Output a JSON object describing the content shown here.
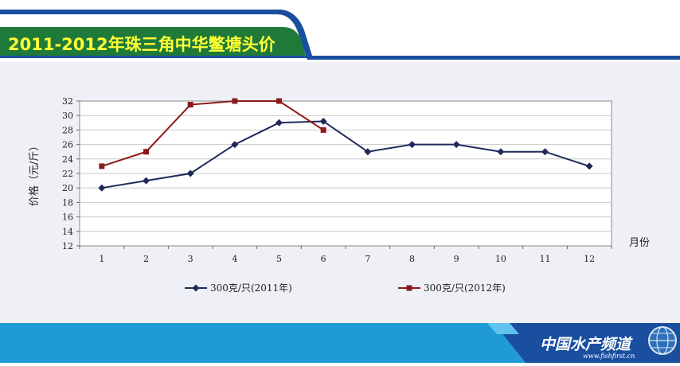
{
  "header": {
    "title": "2011-2012年珠三角中华鳖塘头价"
  },
  "footer": {
    "brand": "中国水产频道",
    "url": "www.fishfirst.cn"
  },
  "colors": {
    "series_2011": "#1f2a5a",
    "series_2012": "#8b1a1a",
    "header_blue": "#1a4fa0",
    "banner_green": "#1f7a3a",
    "title_yellow": "#ffff33",
    "footer_blue": "#1e9bd7"
  },
  "chart_data": {
    "type": "line",
    "title": "2011-2012年珠三角中华鳖塘头价",
    "ylabel": "价格（元/斤）",
    "xlabel": "月份",
    "categories": [
      "1",
      "2",
      "3",
      "4",
      "5",
      "6",
      "7",
      "8",
      "9",
      "10",
      "11",
      "12"
    ],
    "ylim": [
      12,
      32
    ],
    "yticks": [
      "12",
      "14",
      "16",
      "18",
      "20",
      "22",
      "24",
      "26",
      "28",
      "30",
      "32"
    ],
    "grid": true,
    "legend_position": "bottom",
    "series": [
      {
        "name": "300克/只(2011年)",
        "marker": "diamond",
        "values": [
          20,
          21,
          22,
          26,
          29,
          29.2,
          25,
          26,
          26,
          25,
          25,
          23
        ]
      },
      {
        "name": "300克/只(2012年)",
        "marker": "square",
        "values": [
          23,
          25,
          31.5,
          32,
          32,
          28,
          null,
          null,
          null,
          null,
          null,
          null
        ]
      }
    ]
  }
}
